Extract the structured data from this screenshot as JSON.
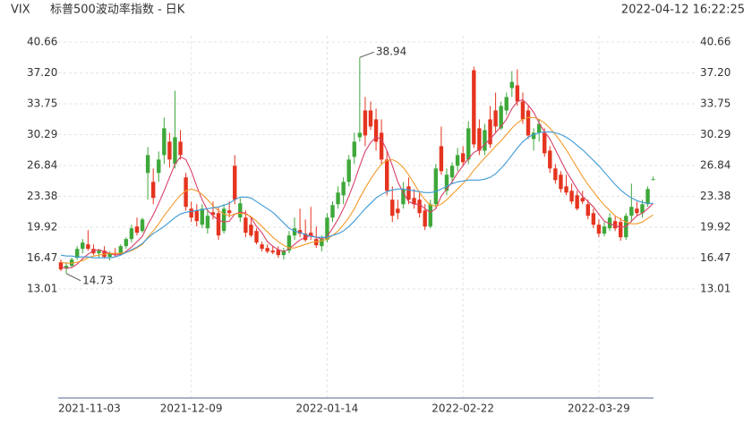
{
  "chart_data": {
    "type": "candlestick",
    "title": "VIX",
    "subtitle": "标普500波动率指数 - 日K",
    "timestamp": "2022-04-12 16:22:25",
    "categories": [
      "2021-11-03",
      null,
      null,
      null,
      null,
      null,
      null,
      null,
      null,
      null,
      null,
      null,
      null,
      null,
      null,
      null,
      null,
      null,
      null,
      null,
      null,
      null,
      null,
      null,
      "2021-12-09",
      null,
      null,
      null,
      null,
      null,
      null,
      null,
      null,
      null,
      null,
      null,
      null,
      null,
      null,
      null,
      null,
      null,
      null,
      null,
      null,
      null,
      null,
      null,
      null,
      "2022-01-14",
      null,
      null,
      null,
      null,
      null,
      null,
      null,
      null,
      null,
      null,
      null,
      null,
      null,
      null,
      null,
      null,
      null,
      null,
      null,
      null,
      null,
      null,
      null,
      null,
      "2022-02-22",
      null,
      null,
      null,
      null,
      null,
      null,
      null,
      null,
      null,
      null,
      null,
      null,
      null,
      null,
      null,
      null,
      null,
      null,
      null,
      null,
      null,
      null,
      null,
      null,
      "2022-03-29",
      null,
      null,
      null,
      null,
      null,
      null,
      null,
      null,
      null,
      null
    ],
    "open": [
      16.0,
      15.3,
      15.6,
      16.5,
      17.5,
      18.0,
      17.5,
      17.0,
      17.3,
      16.6,
      17.0,
      16.9,
      17.8,
      18.6,
      20.0,
      19.5,
      26.0,
      25.0,
      26.0,
      28.0,
      29.5,
      27.0,
      29.5,
      25.5,
      22.0,
      21.8,
      20.2,
      19.8,
      21.6,
      21.5,
      19.5,
      21.8,
      26.8,
      21.0,
      21.0,
      20.2,
      19.5,
      18.0,
      17.6,
      17.3,
      17.4,
      16.8,
      17.3,
      19.0,
      19.6,
      19.2,
      19.3,
      18.6,
      17.8,
      18.5,
      21.0,
      22.5,
      23.5,
      25.0,
      27.8,
      30.0,
      33.0,
      33.0,
      32.0,
      30.5,
      27.5,
      23.0,
      22.0,
      22.5,
      24.5,
      23.2,
      23.0,
      21.8,
      20.0,
      22.5,
      29.0,
      24.0,
      25.5,
      26.8,
      28.2,
      27.5,
      37.5,
      31.0,
      28.5,
      32.0,
      33.0,
      31.0,
      33.0,
      35.5,
      35.8,
      34.0,
      33.0,
      29.8,
      30.5,
      30.5,
      28.5,
      26.5,
      25.8,
      24.5,
      24.0,
      23.5,
      23.2,
      22.5,
      21.5,
      20.2,
      19.2,
      19.8,
      20.6,
      20.5,
      18.8,
      21.2,
      22.0,
      21.5,
      22.5,
      25.3
    ],
    "high": [
      16.3,
      16.0,
      16.5,
      17.8,
      18.6,
      19.6,
      18.0,
      17.5,
      17.8,
      17.2,
      17.6,
      18.0,
      18.8,
      20.2,
      21.0,
      21.0,
      28.9,
      26.5,
      28.4,
      32.2,
      30.5,
      35.2,
      30.8,
      26.0,
      22.8,
      22.5,
      22.5,
      21.8,
      22.8,
      22.2,
      22.5,
      22.8,
      28.0,
      23.2,
      21.8,
      21.0,
      19.8,
      18.3,
      18.0,
      17.8,
      17.8,
      17.6,
      19.5,
      21.0,
      22.0,
      20.8,
      22.2,
      20.0,
      19.0,
      21.5,
      22.8,
      24.5,
      25.5,
      28.0,
      30.5,
      38.94,
      34.5,
      34.0,
      33.2,
      32.0,
      28.5,
      24.5,
      23.0,
      25.0,
      25.5,
      24.2,
      23.8,
      22.5,
      23.0,
      27.0,
      31.2,
      26.5,
      27.2,
      28.8,
      29.0,
      31.8,
      37.9,
      32.0,
      31.5,
      33.5,
      35.0,
      34.0,
      35.0,
      37.4,
      37.6,
      35.0,
      33.5,
      31.0,
      32.0,
      31.0,
      29.0,
      27.0,
      26.2,
      25.8,
      24.8,
      24.0,
      24.0,
      23.0,
      22.0,
      20.8,
      20.5,
      21.5,
      21.2,
      21.0,
      21.5,
      24.8,
      22.8,
      23.0,
      24.5,
      25.6
    ],
    "low": [
      15.0,
      14.73,
      15.4,
      16.3,
      17.0,
      17.3,
      16.8,
      16.5,
      16.4,
      16.2,
      16.6,
      16.8,
      17.5,
      18.2,
      19.0,
      19.3,
      23.0,
      22.5,
      25.0,
      27.0,
      26.6,
      26.5,
      27.5,
      21.8,
      20.5,
      20.0,
      19.8,
      19.2,
      20.8,
      18.5,
      19.2,
      21.0,
      22.5,
      20.5,
      18.8,
      18.8,
      18.0,
      17.2,
      17.0,
      16.9,
      16.5,
      16.3,
      17.0,
      18.5,
      18.8,
      18.3,
      18.5,
      17.6,
      17.2,
      18.2,
      20.5,
      22.0,
      22.5,
      24.5,
      27.0,
      29.5,
      29.0,
      30.8,
      28.5,
      27.0,
      23.5,
      20.5,
      20.8,
      22.0,
      22.5,
      22.0,
      21.0,
      19.6,
      19.8,
      22.0,
      25.8,
      23.5,
      24.8,
      26.2,
      26.8,
      27.0,
      28.8,
      28.0,
      28.0,
      28.8,
      30.5,
      30.8,
      32.5,
      34.5,
      33.5,
      31.5,
      29.8,
      28.5,
      29.5,
      27.8,
      26.0,
      24.8,
      23.8,
      23.5,
      22.5,
      21.8,
      22.5,
      20.8,
      19.8,
      18.8,
      18.9,
      19.5,
      19.5,
      18.4,
      18.5,
      20.5,
      21.2,
      21.0,
      22.2,
      25.2
    ],
    "close": [
      15.2,
      15.6,
      16.3,
      17.5,
      18.2,
      17.5,
      17.0,
      17.3,
      16.6,
      17.0,
      16.9,
      17.8,
      18.6,
      19.8,
      19.3,
      20.8,
      28.0,
      23.2,
      27.5,
      31.0,
      27.5,
      30.0,
      28.0,
      22.2,
      21.0,
      20.6,
      22.0,
      21.2,
      21.3,
      19.0,
      22.0,
      21.5,
      23.0,
      22.6,
      19.3,
      19.0,
      18.2,
      17.5,
      17.2,
      17.1,
      16.8,
      17.3,
      19.0,
      19.8,
      19.2,
      18.5,
      18.9,
      17.9,
      18.6,
      21.0,
      22.4,
      23.8,
      25.0,
      27.5,
      29.5,
      30.5,
      30.2,
      31.2,
      29.5,
      27.5,
      24.0,
      21.2,
      21.5,
      24.2,
      23.0,
      22.5,
      21.5,
      20.0,
      22.5,
      26.5,
      26.2,
      25.8,
      26.8,
      28.0,
      27.2,
      31.0,
      29.2,
      28.5,
      30.8,
      29.2,
      31.2,
      33.5,
      34.5,
      36.2,
      34.0,
      32.0,
      30.2,
      30.5,
      31.5,
      28.2,
      26.5,
      25.2,
      24.2,
      23.8,
      22.8,
      22.0,
      22.8,
      21.2,
      20.2,
      19.2,
      20.0,
      21.0,
      19.8,
      18.8,
      21.2,
      22.2,
      21.5,
      22.5,
      24.2,
      25.3
    ],
    "up_color": "#3ea83a",
    "down_color": "#e5341f",
    "series": [
      {
        "color": "#d9416a",
        "values": [
          15.5,
          15.3,
          15.4,
          15.8,
          16.4,
          16.9,
          17.3,
          17.4,
          17.2,
          17.0,
          16.8,
          16.9,
          17.2,
          17.7,
          18.3,
          18.9,
          20.2,
          21.3,
          22.6,
          24.0,
          25.5,
          27.0,
          27.8,
          27.5,
          26.2,
          24.5,
          23.0,
          21.8,
          21.2,
          20.7,
          20.5,
          20.6,
          21.4,
          21.6,
          21.5,
          21.0,
          20.0,
          19.3,
          18.3,
          17.8,
          17.4,
          17.2,
          17.5,
          18.0,
          18.5,
          18.8,
          19.0,
          18.8,
          18.6,
          18.9,
          19.8,
          20.8,
          22.0,
          23.4,
          25.0,
          26.8,
          28.4,
          29.4,
          30.0,
          29.8,
          28.5,
          26.8,
          25.0,
          23.8,
          22.8,
          22.5,
          22.5,
          22.0,
          21.6,
          22.0,
          23.4,
          24.2,
          25.0,
          26.0,
          26.8,
          27.6,
          28.3,
          28.6,
          29.2,
          29.8,
          30.5,
          31.2,
          32.0,
          33.2,
          34.0,
          34.2,
          33.6,
          32.8,
          31.6,
          30.6,
          29.8,
          28.6,
          27.4,
          26.2,
          25.2,
          24.2,
          23.4,
          22.8,
          22.2,
          21.4,
          20.6,
          20.3,
          20.1,
          19.9,
          20.0,
          20.6,
          21.2,
          21.5,
          22.0,
          22.6
        ]
      },
      {
        "color": "#f39a2b",
        "values": [
          16.0,
          15.9,
          15.9,
          16.0,
          16.2,
          16.5,
          16.7,
          16.8,
          16.9,
          17.0,
          17.0,
          17.0,
          17.1,
          17.3,
          17.6,
          18.0,
          18.8,
          19.5,
          20.3,
          21.2,
          22.0,
          22.8,
          23.5,
          24.0,
          24.2,
          24.0,
          23.6,
          23.0,
          22.3,
          21.8,
          21.4,
          21.2,
          21.4,
          21.5,
          21.4,
          21.1,
          20.6,
          20.0,
          19.4,
          18.8,
          18.3,
          17.9,
          17.6,
          17.6,
          17.8,
          18.0,
          18.2,
          18.3,
          18.4,
          18.6,
          19.0,
          19.5,
          20.2,
          21.0,
          22.0,
          23.2,
          24.3,
          25.3,
          26.2,
          27.0,
          27.4,
          27.5,
          27.2,
          26.6,
          25.8,
          24.8,
          23.8,
          23.0,
          22.4,
          22.3,
          22.5,
          23.0,
          23.6,
          24.2,
          24.8,
          25.5,
          26.3,
          27.0,
          27.7,
          28.3,
          29.0,
          29.6,
          30.3,
          31.0,
          31.6,
          32.0,
          32.2,
          32.2,
          32.0,
          31.6,
          31.0,
          30.3,
          29.5,
          28.6,
          27.6,
          26.6,
          25.6,
          24.7,
          23.9,
          23.1,
          22.4,
          21.8,
          21.2,
          20.8,
          20.5,
          20.3,
          20.3,
          20.5,
          20.9,
          21.3
        ]
      },
      {
        "color": "#3d9ad6",
        "values": [
          16.8,
          16.7,
          16.7,
          16.6,
          16.6,
          16.6,
          16.5,
          16.5,
          16.5,
          16.5,
          16.6,
          16.8,
          17.1,
          17.4,
          17.7,
          18.1,
          18.7,
          19.2,
          19.6,
          20.0,
          20.5,
          21.0,
          21.4,
          21.6,
          21.7,
          21.8,
          21.9,
          22.0,
          22.1,
          22.2,
          22.4,
          22.6,
          23.0,
          23.3,
          23.3,
          23.2,
          22.8,
          22.4,
          22.0,
          21.6,
          21.0,
          20.4,
          19.8,
          19.5,
          19.3,
          19.1,
          18.9,
          18.8,
          18.8,
          18.8,
          19.0,
          19.2,
          19.5,
          20.0,
          20.6,
          21.3,
          22.0,
          22.6,
          23.2,
          23.6,
          23.9,
          24.1,
          24.2,
          24.2,
          24.1,
          24.0,
          23.9,
          23.8,
          23.8,
          23.9,
          24.2,
          24.5,
          24.8,
          25.0,
          25.1,
          25.2,
          25.2,
          25.2,
          25.3,
          25.5,
          25.9,
          26.5,
          27.2,
          28.0,
          28.8,
          29.5,
          30.0,
          30.3,
          30.5,
          30.6,
          30.6,
          30.5,
          30.3,
          30.0,
          29.6,
          29.1,
          28.6,
          28.0,
          27.4,
          26.8,
          26.1,
          25.4,
          24.7,
          24.1,
          23.6,
          23.2,
          22.9,
          22.7,
          22.6,
          22.6
        ]
      }
    ],
    "ylim": [
      13.01,
      40.66
    ],
    "yticks": [
      {
        "value": 13.01,
        "label": "13.01"
      },
      {
        "value": 16.47,
        "label": "16.47"
      },
      {
        "value": 19.92,
        "label": "19.92"
      },
      {
        "value": 23.38,
        "label": "23.38"
      },
      {
        "value": 26.84,
        "label": "26.84"
      },
      {
        "value": 30.29,
        "label": "30.29"
      },
      {
        "value": 33.75,
        "label": "33.75"
      },
      {
        "value": 37.2,
        "label": "37.20"
      },
      {
        "value": 40.66,
        "label": "40.66"
      }
    ],
    "grid": true
  }
}
